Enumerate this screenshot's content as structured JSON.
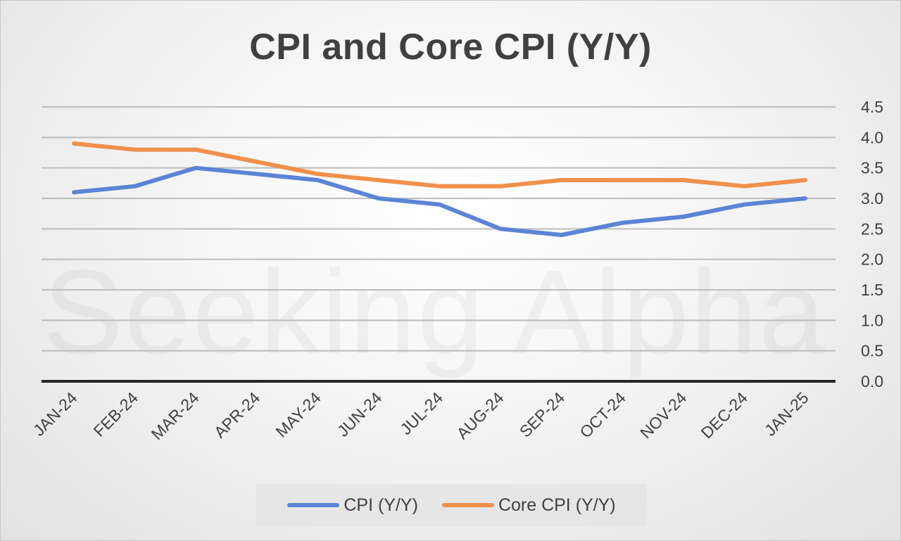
{
  "chart_data": {
    "type": "line",
    "title": "CPI and Core CPI (Y/Y)",
    "categories": [
      "JAN-24",
      "FEB-24",
      "MAR-24",
      "APR-24",
      "MAY-24",
      "JUN-24",
      "JUL-24",
      "AUG-24",
      "SEP-24",
      "OCT-24",
      "NOV-24",
      "DEC-24",
      "JAN-25"
    ],
    "series": [
      {
        "name": "CPI (Y/Y)",
        "color": "#5B84D6",
        "values": [
          3.1,
          3.2,
          3.5,
          3.4,
          3.3,
          3.0,
          2.9,
          2.5,
          2.4,
          2.6,
          2.7,
          2.9,
          3.0
        ]
      },
      {
        "name": "Core CPI (Y/Y)",
        "color": "#F0904A",
        "values": [
          3.9,
          3.8,
          3.8,
          3.6,
          3.4,
          3.3,
          3.2,
          3.2,
          3.3,
          3.3,
          3.3,
          3.2,
          3.3
        ]
      }
    ],
    "y_ticks": [
      "0.0",
      "0.5",
      "1.0",
      "1.5",
      "2.0",
      "2.5",
      "3.0",
      "3.5",
      "4.0",
      "4.5"
    ],
    "ylim": [
      0,
      4.5
    ],
    "y_axis_side": "right",
    "grid": true,
    "legend_position": "bottom",
    "watermark": "Seeking Alpha"
  }
}
